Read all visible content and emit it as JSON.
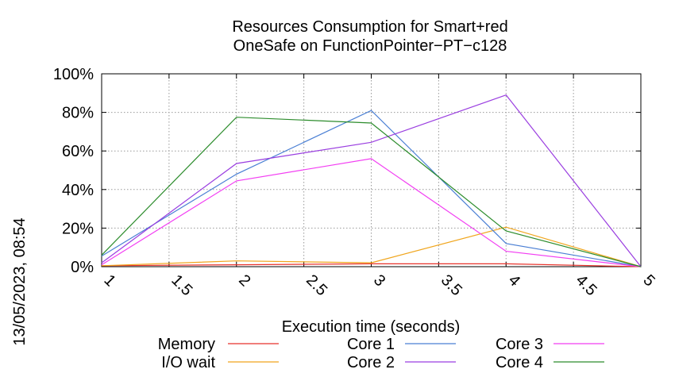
{
  "chart_data": {
    "type": "line",
    "title": [
      "Resources Consumption for Smart+red",
      "OneSafe on FunctionPointer−PT−c128"
    ],
    "xlabel": "Execution time (seconds)",
    "ylabel": "",
    "xlim": [
      1,
      5
    ],
    "ylim": [
      0,
      100
    ],
    "x_ticks": [
      "1",
      "1.5",
      "2",
      "2.5",
      "3",
      "3.5",
      "4",
      "4.5",
      "5"
    ],
    "y_ticks": [
      "0%",
      "20%",
      "40%",
      "60%",
      "80%",
      "100%"
    ],
    "grid": true,
    "legend_position": "bottom",
    "timestamp": "13/05/2023, 08:54",
    "x": [
      1,
      2,
      3,
      4,
      5
    ],
    "series": [
      {
        "name": "Memory",
        "color": "#e8322b",
        "values": [
          0.5,
          1.0,
          1.5,
          1.5,
          0
        ]
      },
      {
        "name": "I/O wait",
        "color": "#f0a51c",
        "values": [
          0.5,
          3.0,
          2.0,
          20.5,
          0
        ]
      },
      {
        "name": "Core 1",
        "color": "#4a7fd4",
        "values": [
          5.5,
          48.0,
          81.0,
          12.0,
          0
        ]
      },
      {
        "name": "Core 2",
        "color": "#9a3ee0",
        "values": [
          2.0,
          53.5,
          64.5,
          89.0,
          0
        ]
      },
      {
        "name": "Core 3",
        "color": "#f23ef2",
        "values": [
          1.0,
          44.5,
          56.0,
          8.0,
          0
        ]
      },
      {
        "name": "Core 4",
        "color": "#2c8c2c",
        "values": [
          6.0,
          77.5,
          74.5,
          18.5,
          0
        ]
      }
    ]
  }
}
